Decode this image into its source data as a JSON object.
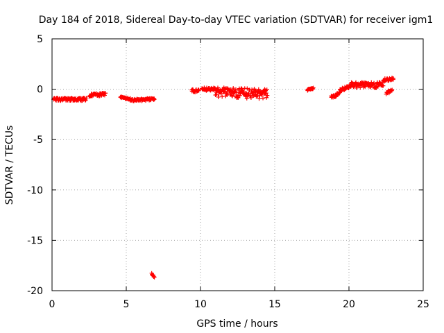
{
  "chart_data": {
    "type": "scatter",
    "title": "Day 184 of 2018, Sidereal Day-to-day VTEC variation (SDTVAR) for receiver igm1",
    "xlabel": "GPS time / hours",
    "ylabel": "SDTVAR / TECUs",
    "xlim": [
      0,
      25
    ],
    "ylim": [
      -20,
      5
    ],
    "xticks": [
      0,
      5,
      10,
      15,
      20,
      25
    ],
    "yticks": [
      5,
      0,
      -5,
      -10,
      -15,
      -20
    ],
    "grid": true,
    "marker": "+",
    "color": "#ff0000",
    "series": [
      {
        "name": "SDTVAR",
        "segments": [
          {
            "x_start": 0.1,
            "x_end": 2.3,
            "y_start": -1.0,
            "y_end": -1.0,
            "spread": 0.3
          },
          {
            "x_start": 2.5,
            "x_end": 3.6,
            "y_start": -0.6,
            "y_end": -0.5,
            "spread": 0.3
          },
          {
            "x_start": 4.6,
            "x_end": 5.3,
            "y_start": -0.8,
            "y_end": -1.0,
            "spread": 0.2
          },
          {
            "x_start": 5.3,
            "x_end": 6.9,
            "y_start": -1.1,
            "y_end": -1.0,
            "spread": 0.25
          },
          {
            "x_start": 6.7,
            "x_end": 6.9,
            "y_start": -18.3,
            "y_end": -18.7,
            "spread": 0.2
          },
          {
            "x_start": 9.4,
            "x_end": 9.9,
            "y_start": -0.1,
            "y_end": -0.2,
            "spread": 0.3
          },
          {
            "x_start": 10.1,
            "x_end": 11.0,
            "y_start": 0.0,
            "y_end": 0.0,
            "spread": 0.3
          },
          {
            "x_start": 11.0,
            "x_end": 14.5,
            "y_start": -0.3,
            "y_end": -0.5,
            "spread": 1.0
          },
          {
            "x_start": 17.2,
            "x_end": 17.6,
            "y_start": -0.1,
            "y_end": 0.1,
            "spread": 0.2
          },
          {
            "x_start": 18.8,
            "x_end": 19.4,
            "y_start": -0.8,
            "y_end": -0.4,
            "spread": 0.3
          },
          {
            "x_start": 19.4,
            "x_end": 20.1,
            "y_start": -0.1,
            "y_end": 0.3,
            "spread": 0.3
          },
          {
            "x_start": 20.1,
            "x_end": 22.3,
            "y_start": 0.4,
            "y_end": 0.4,
            "spread": 0.6
          },
          {
            "x_start": 22.3,
            "x_end": 23.0,
            "y_start": 0.9,
            "y_end": 1.0,
            "spread": 0.3
          },
          {
            "x_start": 22.5,
            "x_end": 22.9,
            "y_start": -0.4,
            "y_end": -0.1,
            "spread": 0.3
          }
        ]
      }
    ]
  }
}
